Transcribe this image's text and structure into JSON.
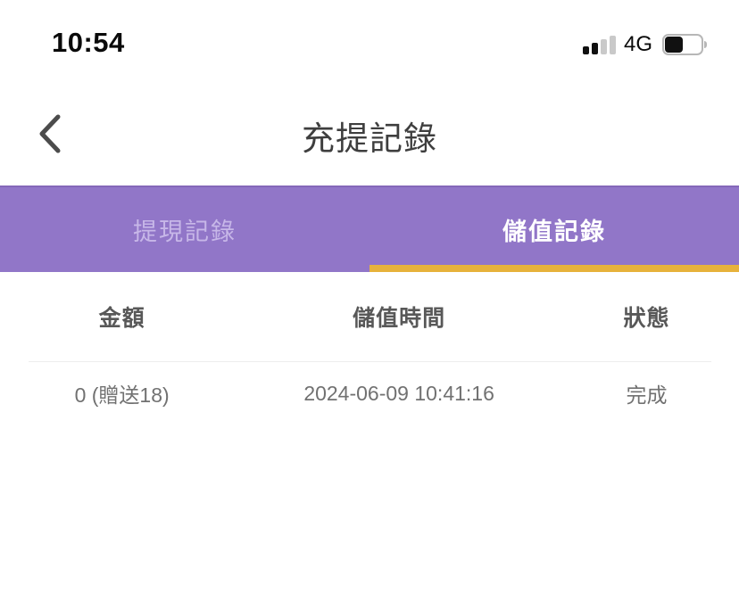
{
  "status_bar": {
    "time": "10:54",
    "network_label": "4G",
    "signal": {
      "bars_total": 4,
      "bars_filled": 2
    },
    "battery": {
      "percent_visual": 40
    }
  },
  "header": {
    "title": "充提記錄"
  },
  "tabs": {
    "items": [
      {
        "label": "提現記錄",
        "active": false
      },
      {
        "label": "儲值記錄",
        "active": true
      }
    ]
  },
  "records_table": {
    "columns": [
      "金額",
      "儲值時間",
      "狀態"
    ],
    "rows": [
      {
        "amount": "0 (贈送18)",
        "time": "2024-06-09 10:41:16",
        "status": "完成"
      }
    ]
  },
  "icons": {
    "back": "chevron-left-icon",
    "signal": "cellular-signal-icon",
    "battery": "battery-icon"
  },
  "colors": {
    "tab_bar_bg": "#9176c8",
    "tab_inactive_text": "#c7b7e8",
    "tab_active_text": "#ffffff",
    "active_tab_underline": "#e7b23b",
    "header_title_text": "#3e3e3e",
    "table_header_text": "#585858",
    "table_row_text": "#717171",
    "divider": "#ededed"
  }
}
